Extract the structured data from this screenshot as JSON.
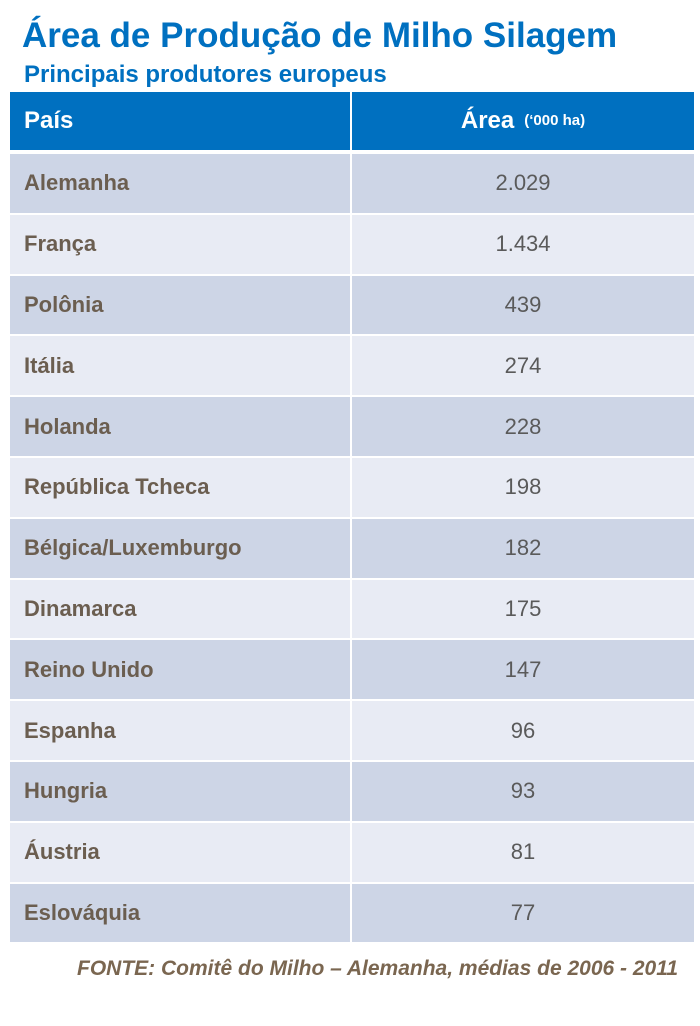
{
  "title": "Área de Produção de Milho Silagem",
  "subtitle": "Principais produtores europeus",
  "table": {
    "headers": {
      "country": "País",
      "area": "Área",
      "area_unit": "(‘000 ha)"
    },
    "rows": [
      {
        "country": "Alemanha",
        "area": "2.029"
      },
      {
        "country": "França",
        "area": "1.434"
      },
      {
        "country": "Polônia",
        "area": "439"
      },
      {
        "country": "Itália",
        "area": "274"
      },
      {
        "country": "Holanda",
        "area": "228"
      },
      {
        "country": "República Tcheca",
        "area": "198"
      },
      {
        "country": "Bélgica/Luxemburgo",
        "area": "182"
      },
      {
        "country": "Dinamarca",
        "area": "175"
      },
      {
        "country": "Reino Unido",
        "area": "147"
      },
      {
        "country": "Espanha",
        "area": "96"
      },
      {
        "country": "Hungria",
        "area": "93"
      },
      {
        "country": "Áustria",
        "area": "81"
      },
      {
        "country": "Eslováquia",
        "area": "77"
      }
    ]
  },
  "source": "FONTE: Comitê do Milho – Alemanha, médias de 2006 - 2011",
  "colors": {
    "accent": "#0070c0",
    "row_dark": "#cdd5e6",
    "row_light": "#e8ebf4",
    "country_text": "#6b5e50",
    "source_text": "#7a6650"
  }
}
